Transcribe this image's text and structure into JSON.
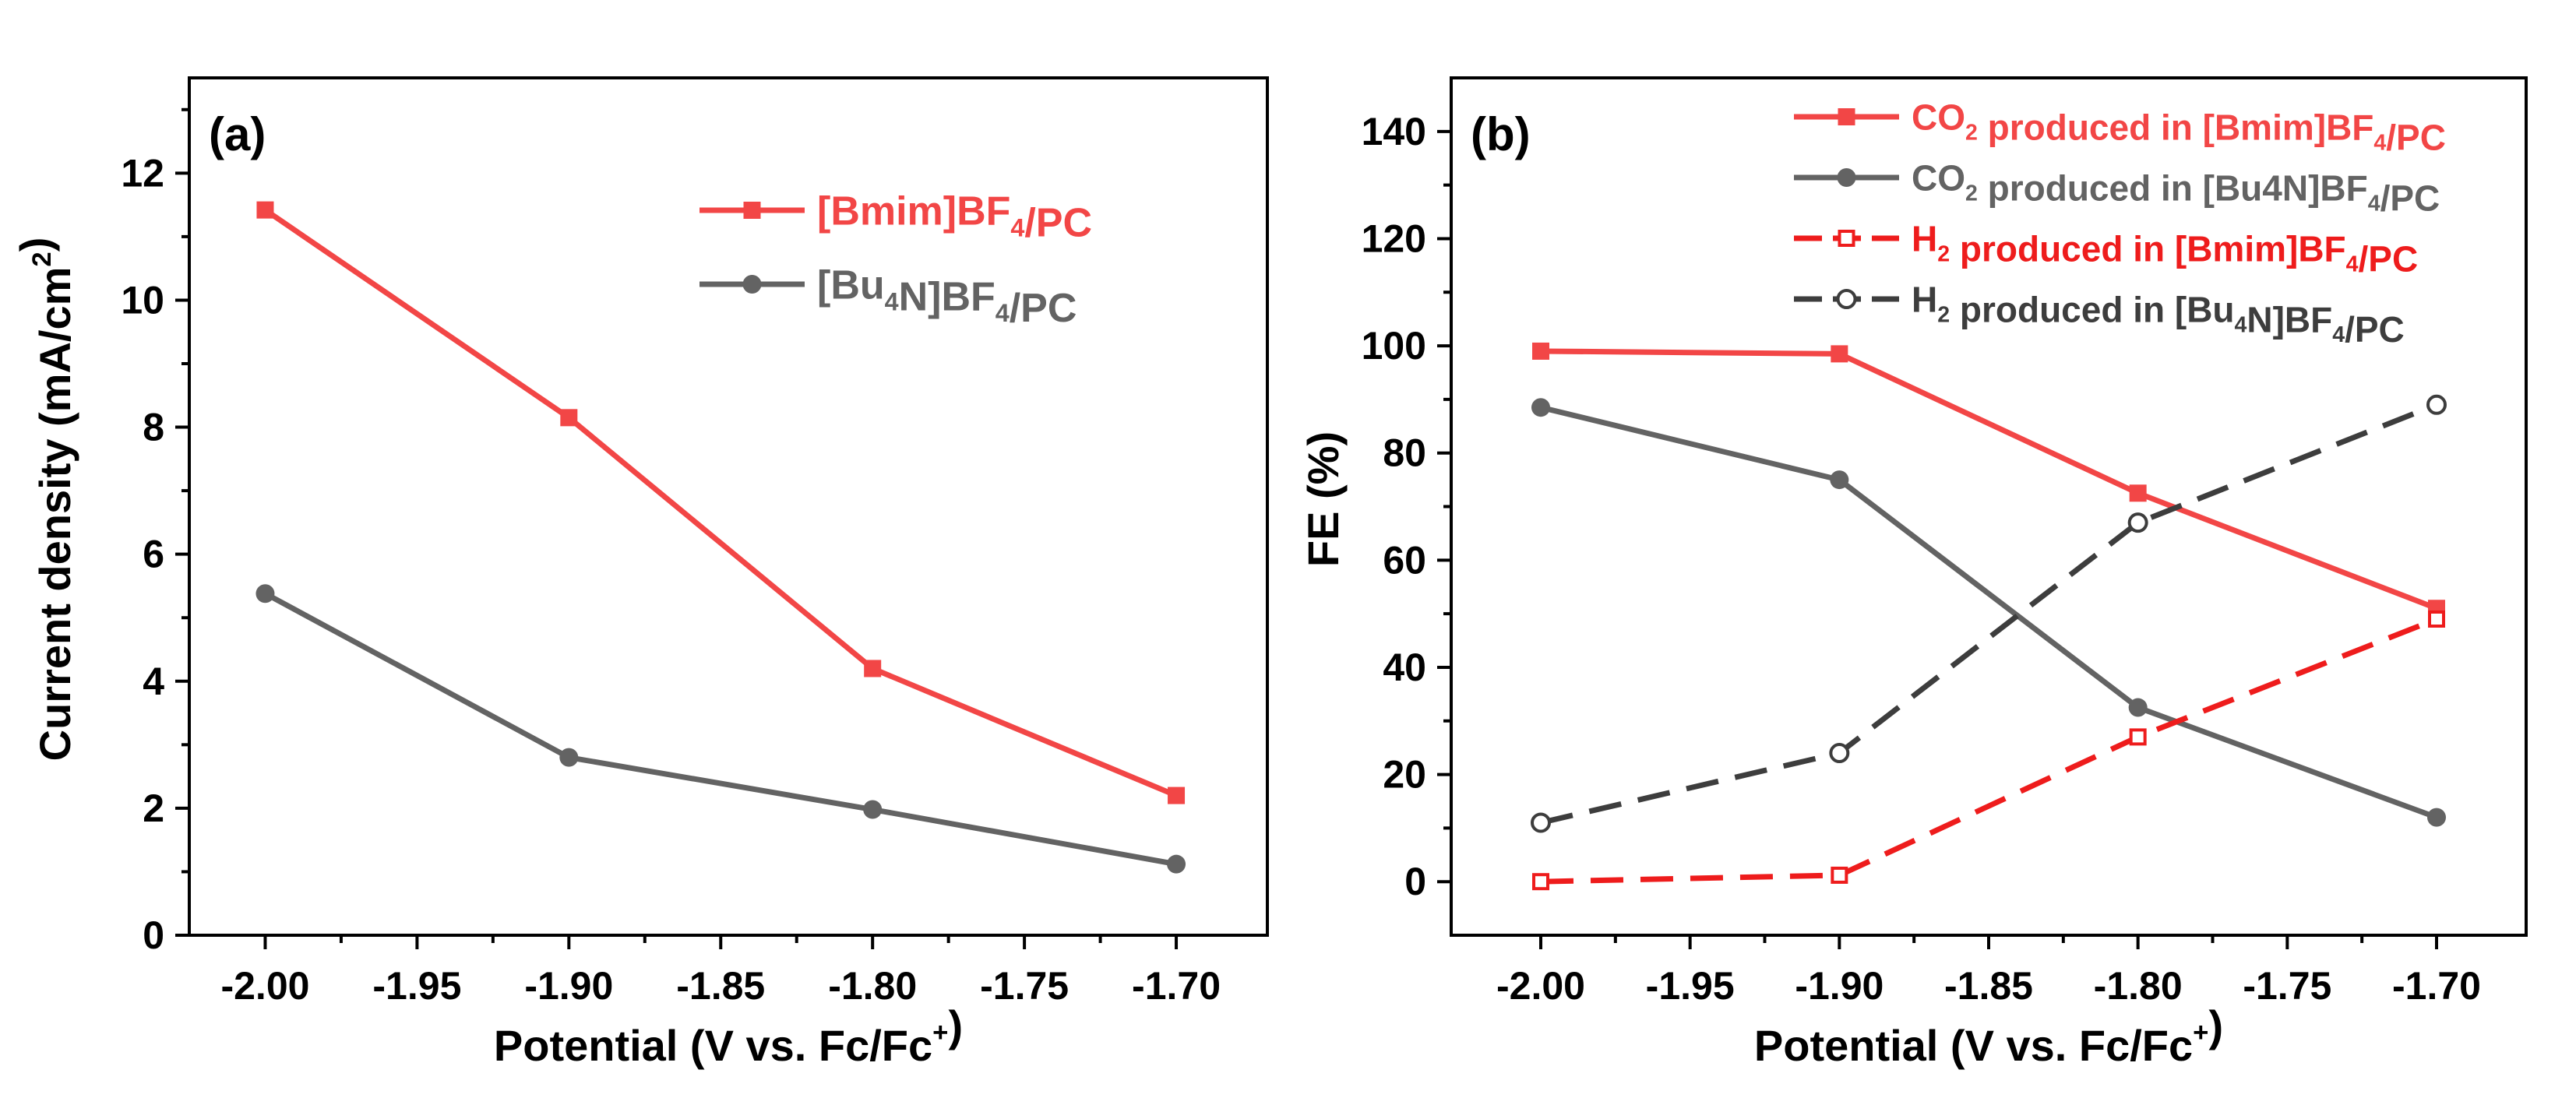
{
  "chart_data": [
    {
      "type": "line",
      "panel_label": "(a)",
      "xlabel": "Potential (V vs. Fc/Fc⁺)",
      "ylabel": "Current density (mA/cm²)",
      "xlim": [
        -2.025,
        -1.67
      ],
      "ylim": [
        0,
        13.5
      ],
      "x_ticks": [
        -2.0,
        -1.95,
        -1.9,
        -1.85,
        -1.8,
        -1.75,
        -1.7
      ],
      "x_tick_labels": [
        "-2.00",
        "-1.95",
        "-1.90",
        "-1.85",
        "-1.80",
        "-1.75",
        "-1.70"
      ],
      "y_ticks": [
        0,
        2,
        4,
        6,
        8,
        10,
        12
      ],
      "y_tick_labels": [
        "0",
        "2",
        "4",
        "6",
        "8",
        "10",
        "12"
      ],
      "legend_position": "top-right",
      "series": [
        {
          "name": "[Bmim]BF₄/PC",
          "color": "#f24646",
          "marker": "filled-square",
          "dash": "solid",
          "x": [
            -2.0,
            -1.9,
            -1.8,
            -1.7
          ],
          "values": [
            11.42,
            8.15,
            4.2,
            2.2
          ]
        },
        {
          "name": "[Bu₄N]BF₄/PC",
          "color": "#636363",
          "marker": "filled-circle",
          "dash": "solid",
          "x": [
            -2.0,
            -1.9,
            -1.8,
            -1.7
          ],
          "values": [
            5.38,
            2.8,
            1.98,
            1.12
          ]
        }
      ]
    },
    {
      "type": "line",
      "panel_label": "(b)",
      "xlabel": "Potential (V vs. Fc/Fc⁺)",
      "ylabel": "FE (%)",
      "xlim": [
        -2.03,
        -1.67
      ],
      "ylim": [
        -10,
        150
      ],
      "x_ticks": [
        -2.0,
        -1.95,
        -1.9,
        -1.85,
        -1.8,
        -1.75,
        -1.7
      ],
      "x_tick_labels": [
        "-2.00",
        "-1.95",
        "-1.90",
        "-1.85",
        "-1.80",
        "-1.75",
        "-1.70"
      ],
      "y_ticks": [
        0,
        20,
        40,
        60,
        80,
        100,
        120,
        140
      ],
      "y_tick_labels": [
        "0",
        "20",
        "40",
        "60",
        "80",
        "100",
        "120",
        "140"
      ],
      "legend_position": "top-right",
      "series": [
        {
          "name": "CO₂ produced in [Bmim]BF₄/PC",
          "color": "#f24646",
          "marker": "filled-square",
          "dash": "solid",
          "x": [
            -2.0,
            -1.9,
            -1.8,
            -1.7
          ],
          "values": [
            99,
            98.5,
            72.5,
            51
          ]
        },
        {
          "name": "CO₂ produced in [Bu4N]BF₄/PC",
          "color": "#636363",
          "marker": "filled-circle",
          "dash": "solid",
          "x": [
            -2.0,
            -1.9,
            -1.8,
            -1.7
          ],
          "values": [
            88.5,
            75,
            32.5,
            12
          ]
        },
        {
          "name": "H₂ produced in [Bmim]BF₄/PC",
          "color": "#ee1c1c",
          "marker": "open-square",
          "dash": "dashed",
          "x": [
            -2.0,
            -1.9,
            -1.8,
            -1.7
          ],
          "values": [
            0,
            1.2,
            27,
            49
          ]
        },
        {
          "name": "H₂ produced in [Bu₄N]BF₄/PC",
          "color": "#3d3d3d",
          "marker": "open-circle",
          "dash": "dashed",
          "x": [
            -2.0,
            -1.9,
            -1.8,
            -1.7
          ],
          "values": [
            11,
            24,
            67,
            89
          ]
        }
      ]
    }
  ]
}
